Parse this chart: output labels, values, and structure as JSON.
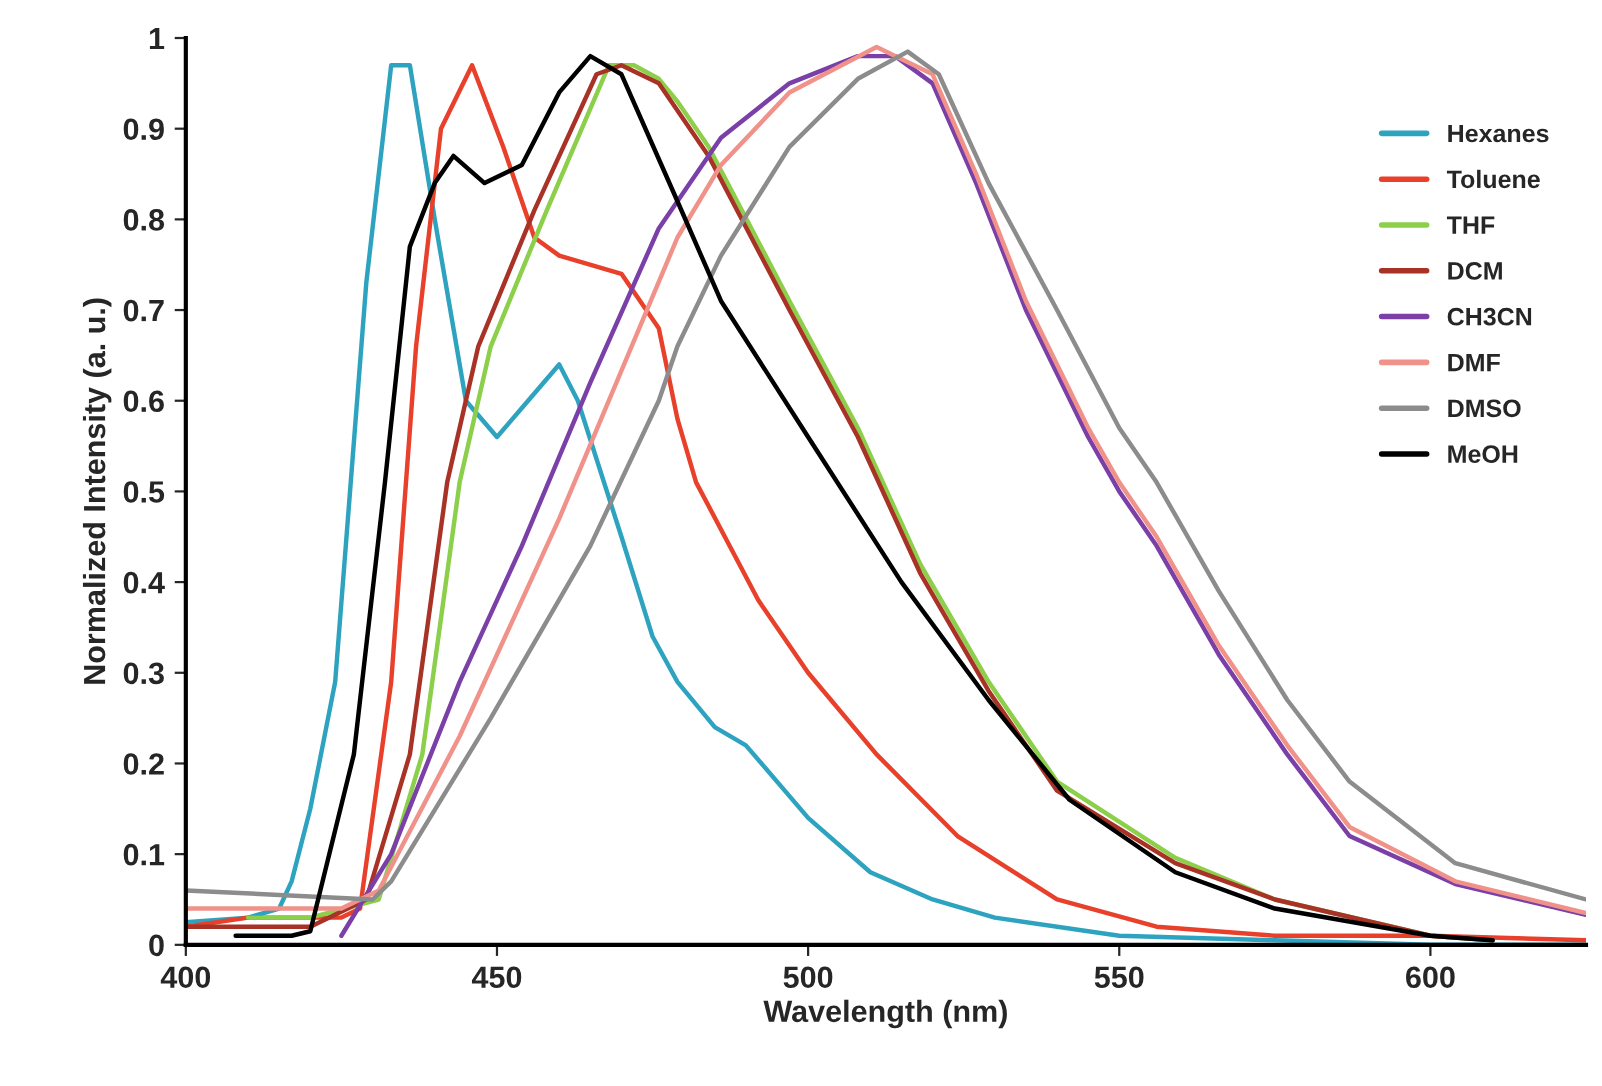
{
  "chart_data": {
    "type": "line",
    "xlabel": "Wavelength (nm)",
    "ylabel": "Normalized Intensity (a. u.)",
    "xlim": [
      400,
      625
    ],
    "xticks": [
      400,
      450,
      500,
      550,
      600
    ],
    "ylim": [
      0,
      1
    ],
    "yticks": [
      0,
      0.1,
      0.2,
      0.3,
      0.4,
      0.5,
      0.6,
      0.7,
      0.8,
      0.9,
      1
    ],
    "grid": false,
    "legend": "top right",
    "marker": "none",
    "line_style": "solid",
    "series": [
      {
        "name": "Hexanes",
        "color": "#2ea3c0",
        "x": [
          400,
          410,
          415,
          417,
          420,
          424,
          429,
          433,
          436,
          440,
          445,
          450,
          455,
          460,
          463,
          470,
          475,
          479,
          485,
          490,
          500,
          510,
          520,
          530,
          550,
          575,
          600,
          625
        ],
        "values": [
          0.025,
          0.03,
          0.04,
          0.07,
          0.15,
          0.29,
          0.73,
          0.97,
          0.97,
          0.8,
          0.6,
          0.56,
          0.6,
          0.64,
          0.6,
          0.45,
          0.34,
          0.29,
          0.24,
          0.22,
          0.14,
          0.08,
          0.05,
          0.03,
          0.01,
          0.005,
          0.0,
          0.0
        ]
      },
      {
        "name": "Toluene",
        "color": "#e8402a",
        "x": [
          400,
          410,
          420,
          425,
          428,
          433,
          437,
          441,
          446,
          451,
          456,
          460,
          470,
          476,
          479,
          482,
          492,
          500,
          511,
          524,
          540,
          556,
          575,
          600,
          625
        ],
        "values": [
          0.02,
          0.03,
          0.03,
          0.03,
          0.04,
          0.29,
          0.66,
          0.9,
          0.97,
          0.88,
          0.78,
          0.76,
          0.74,
          0.68,
          0.58,
          0.51,
          0.38,
          0.3,
          0.21,
          0.12,
          0.05,
          0.02,
          0.01,
          0.01,
          0.005
        ]
      },
      {
        "name": "THF",
        "color": "#8ccf4a",
        "x": [
          410,
          420,
          431,
          438,
          444,
          449,
          458,
          468,
          472,
          476,
          479,
          484,
          497,
          508,
          518,
          529,
          540,
          559,
          575,
          600,
          610
        ],
        "values": [
          0.03,
          0.03,
          0.05,
          0.21,
          0.51,
          0.66,
          0.81,
          0.97,
          0.97,
          0.955,
          0.93,
          0.88,
          0.71,
          0.57,
          0.42,
          0.29,
          0.18,
          0.096,
          0.05,
          0.01,
          0.005
        ]
      },
      {
        "name": "DCM",
        "color": "#a93226",
        "x": [
          400,
          410,
          420,
          429,
          436,
          442,
          447,
          456,
          466,
          470,
          476,
          479,
          484,
          497,
          508,
          518,
          529,
          540,
          559,
          575,
          600,
          610
        ],
        "values": [
          0.02,
          0.02,
          0.02,
          0.05,
          0.21,
          0.51,
          0.66,
          0.81,
          0.96,
          0.97,
          0.95,
          0.92,
          0.87,
          0.7,
          0.56,
          0.41,
          0.28,
          0.17,
          0.09,
          0.05,
          0.01,
          0.005
        ]
      },
      {
        "name": "CH3CN",
        "color": "#7b3fa8",
        "x": [
          425,
          433,
          444,
          454,
          465,
          476,
          479,
          486,
          497,
          508,
          514,
          520,
          527,
          535,
          545,
          550,
          556,
          566,
          577,
          587,
          604,
          625
        ],
        "values": [
          0.01,
          0.1,
          0.29,
          0.44,
          0.62,
          0.79,
          0.82,
          0.89,
          0.95,
          0.98,
          0.98,
          0.95,
          0.84,
          0.7,
          0.56,
          0.5,
          0.44,
          0.32,
          0.21,
          0.12,
          0.067,
          0.033
        ]
      },
      {
        "name": "DMF",
        "color": "#f0928a",
        "x": [
          400,
          415,
          425,
          431,
          444,
          460,
          479,
          486,
          497,
          511,
          520,
          527,
          535,
          545,
          550,
          556,
          566,
          577,
          587,
          604,
          625
        ],
        "values": [
          0.04,
          0.04,
          0.04,
          0.06,
          0.23,
          0.47,
          0.78,
          0.86,
          0.94,
          0.99,
          0.96,
          0.85,
          0.71,
          0.57,
          0.51,
          0.45,
          0.33,
          0.22,
          0.13,
          0.07,
          0.035
        ]
      },
      {
        "name": "DMSO",
        "color": "#8c8c8c",
        "x": [
          400,
          415,
          430,
          433,
          449,
          465,
          476,
          479,
          486,
          497,
          508,
          516,
          521,
          529,
          540,
          550,
          556,
          566,
          577,
          587,
          604,
          625
        ],
        "values": [
          0.06,
          0.055,
          0.05,
          0.07,
          0.25,
          0.44,
          0.6,
          0.66,
          0.76,
          0.88,
          0.955,
          0.985,
          0.96,
          0.84,
          0.7,
          0.57,
          0.51,
          0.39,
          0.27,
          0.18,
          0.09,
          0.05
        ]
      },
      {
        "name": "MeOH",
        "color": "#000000",
        "x": [
          408,
          417,
          420,
          427,
          432,
          436,
          440,
          443,
          448,
          454,
          460,
          465,
          470,
          479,
          486,
          500,
          515,
          529,
          542,
          559,
          575,
          600,
          610
        ],
        "values": [
          0.01,
          0.01,
          0.015,
          0.21,
          0.51,
          0.77,
          0.84,
          0.87,
          0.84,
          0.86,
          0.94,
          0.98,
          0.96,
          0.82,
          0.71,
          0.56,
          0.4,
          0.27,
          0.16,
          0.08,
          0.04,
          0.01,
          0.005
        ]
      }
    ]
  }
}
